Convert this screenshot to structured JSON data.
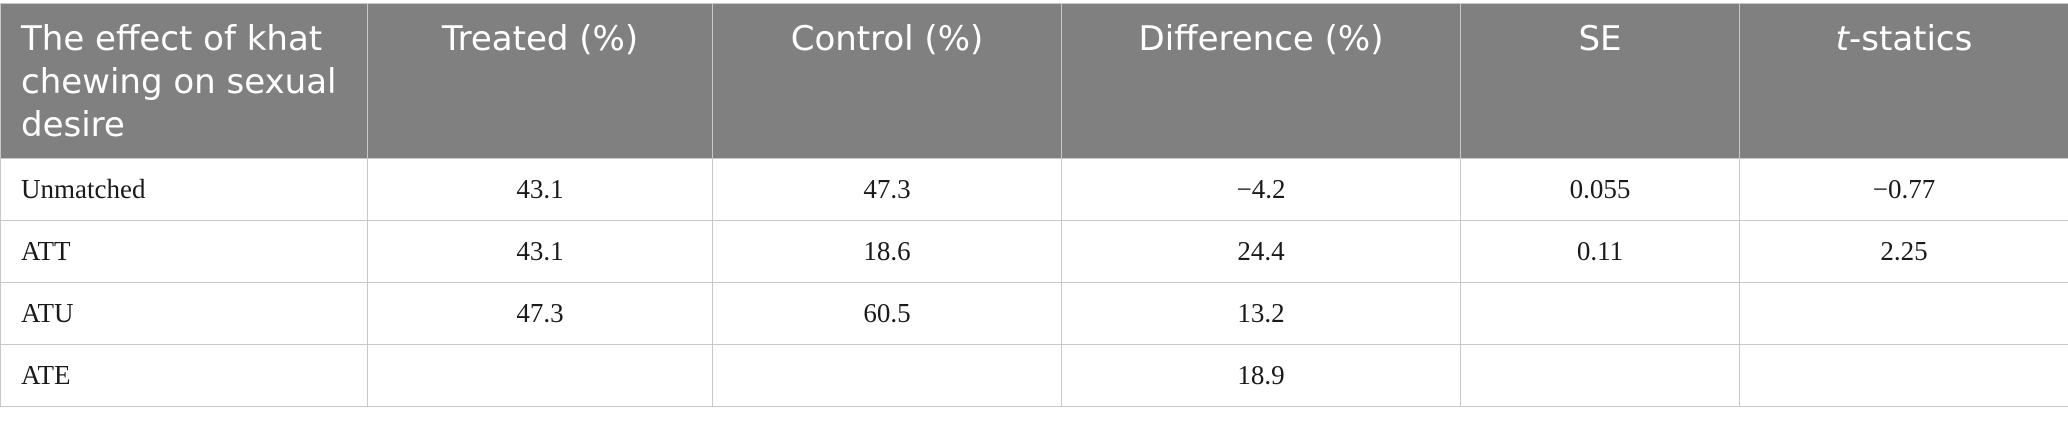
{
  "table": {
    "headers": [
      "The effect of khat chewing on sexual desire",
      "Treated (%)",
      "Control (%)",
      "Difference (%)",
      "SE"
    ],
    "last_header": {
      "prefix": "t",
      "suffix": "-statics"
    },
    "rows": [
      [
        "Unmatched",
        "43.1",
        "47.3",
        "−4.2",
        "0.055",
        "−0.77"
      ],
      [
        "ATT",
        "43.1",
        "18.6",
        "24.4",
        "0.11",
        "2.25"
      ],
      [
        "ATU",
        "47.3",
        "60.5",
        "13.2",
        "",
        ""
      ],
      [
        "ATE",
        "",
        "",
        "18.9",
        "",
        ""
      ]
    ]
  }
}
